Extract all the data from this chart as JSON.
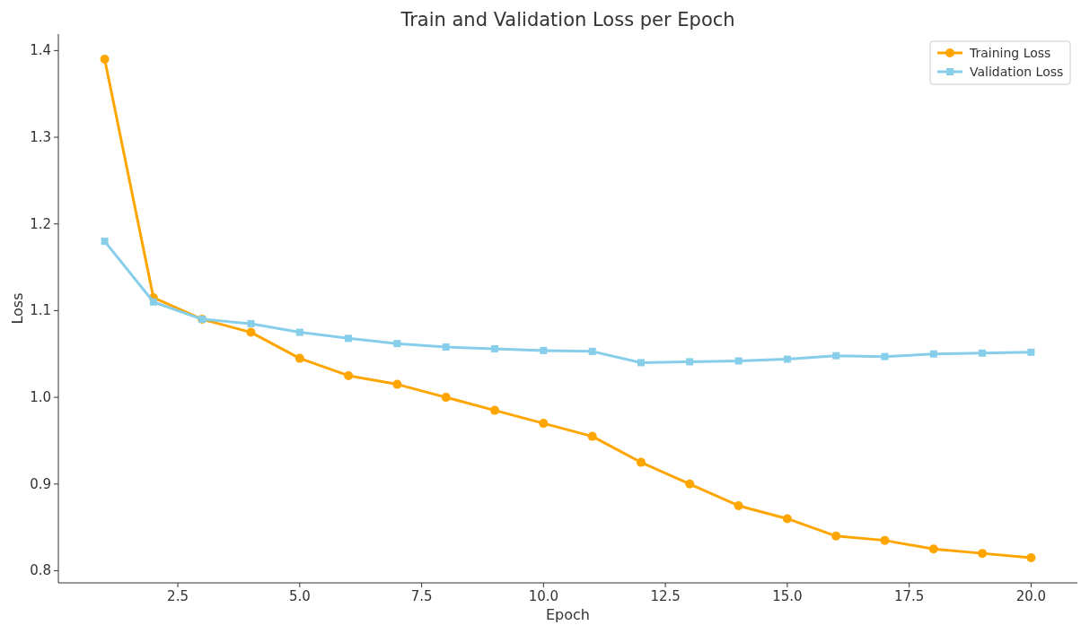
{
  "chart_data": {
    "type": "line",
    "title": "Train and Validation Loss per Epoch",
    "xlabel": "Epoch",
    "ylabel": "Loss",
    "x": [
      1,
      2,
      3,
      4,
      5,
      6,
      7,
      8,
      9,
      10,
      11,
      12,
      13,
      14,
      15,
      16,
      17,
      18,
      19,
      20
    ],
    "series": [
      {
        "name": "Training Loss",
        "color": "#ffa500",
        "marker": "circle",
        "values": [
          1.39,
          1.115,
          1.09,
          1.075,
          1.045,
          1.025,
          1.015,
          1.0,
          0.985,
          0.97,
          0.955,
          0.925,
          0.9,
          0.875,
          0.86,
          0.84,
          0.835,
          0.825,
          0.82,
          0.815
        ]
      },
      {
        "name": "Validation Loss",
        "color": "#87ceeb",
        "marker": "square",
        "values": [
          1.18,
          1.11,
          1.09,
          1.085,
          1.075,
          1.068,
          1.062,
          1.058,
          1.056,
          1.054,
          1.053,
          1.04,
          1.041,
          1.042,
          1.044,
          1.048,
          1.047,
          1.05,
          1.051,
          1.052
        ]
      }
    ],
    "xlim": [
      0.05,
      20.95
    ],
    "ylim": [
      0.786,
      1.419
    ],
    "xticks": [
      {
        "value": 2.5,
        "label": "2.5"
      },
      {
        "value": 5,
        "label": "5.0"
      },
      {
        "value": 7.5,
        "label": "7.5"
      },
      {
        "value": 10,
        "label": "10.0"
      },
      {
        "value": 12.5,
        "label": "12.5"
      },
      {
        "value": 15,
        "label": "15.0"
      },
      {
        "value": 17.5,
        "label": "17.5"
      },
      {
        "value": 20,
        "label": "20.0"
      }
    ],
    "yticks": [
      {
        "value": 0.8,
        "label": "0.8"
      },
      {
        "value": 0.9,
        "label": "0.9"
      },
      {
        "value": 1.0,
        "label": "1.0"
      },
      {
        "value": 1.1,
        "label": "1.1"
      },
      {
        "value": 1.2,
        "label": "1.2"
      },
      {
        "value": 1.3,
        "label": "1.3"
      },
      {
        "value": 1.4,
        "label": "1.4"
      }
    ],
    "grid": false,
    "legend": "top right",
    "line_style": "solid"
  }
}
